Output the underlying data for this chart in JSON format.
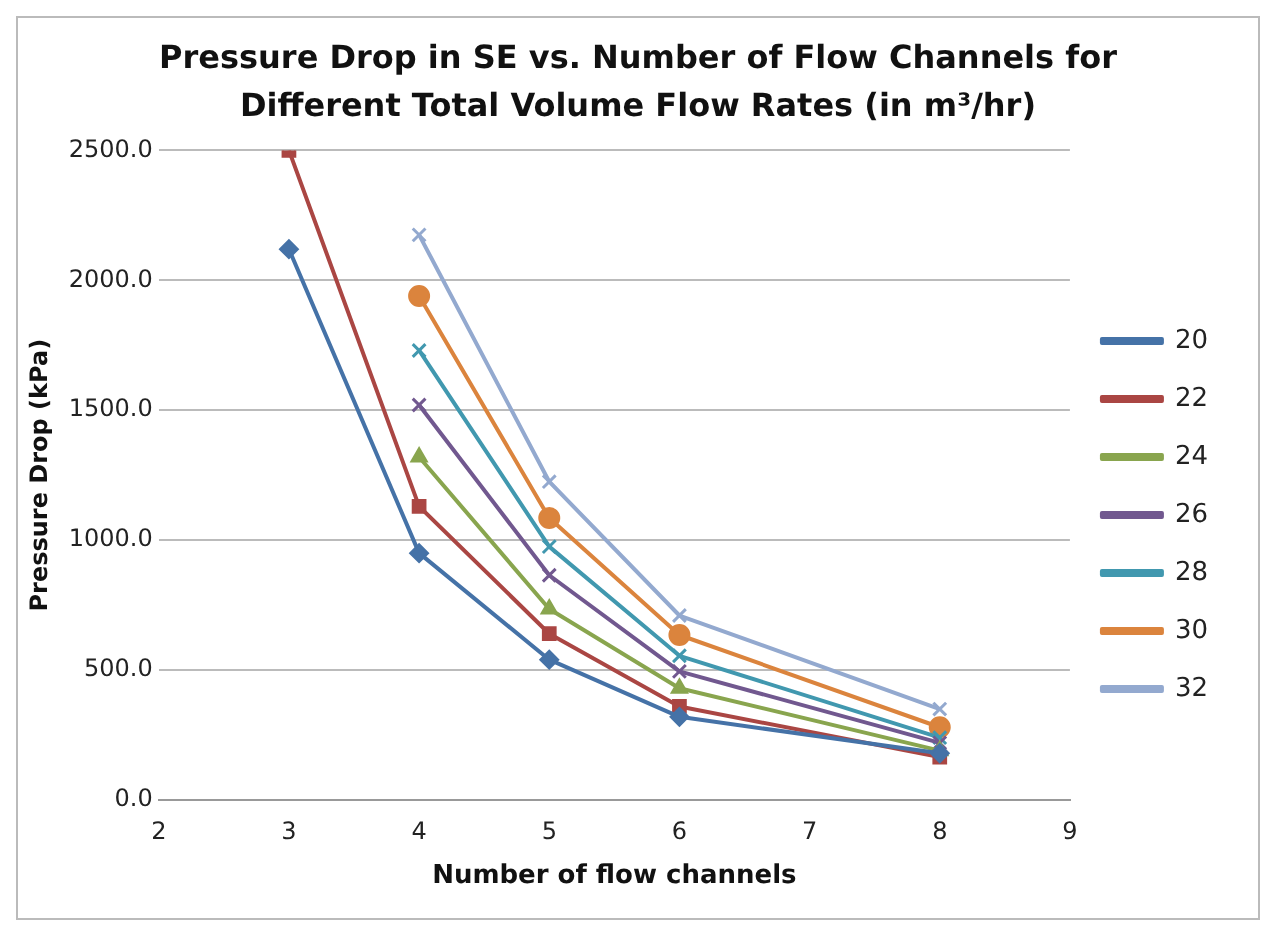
{
  "chart_data": {
    "type": "line",
    "title": "Pressure Drop in SE vs. Number of Flow Channels for Different Total Volume Flow Rates (in m³/hr)",
    "xlabel": "Number of flow channels",
    "ylabel": "Pressure Drop (kPa)",
    "x": [
      3,
      4,
      5,
      6,
      8
    ],
    "series": [
      {
        "name": "20",
        "color": "#4572a7",
        "marker": "diamond",
        "values": [
          2120,
          950,
          540,
          320,
          180
        ]
      },
      {
        "name": "22",
        "color": "#aa4643",
        "marker": "square",
        "values": [
          2500,
          1130,
          640,
          360,
          165
        ]
      },
      {
        "name": "24",
        "color": "#89a54e",
        "marker": "triangle",
        "values": [
          null,
          1320,
          735,
          430,
          190
        ]
      },
      {
        "name": "26",
        "color": "#71588f",
        "marker": "cross",
        "values": [
          null,
          1520,
          865,
          495,
          220
        ]
      },
      {
        "name": "28",
        "color": "#4198af",
        "marker": "cross",
        "values": [
          null,
          1730,
          975,
          555,
          240
        ]
      },
      {
        "name": "30",
        "color": "#db843d",
        "marker": "circle",
        "values": [
          null,
          1940,
          1085,
          635,
          280
        ]
      },
      {
        "name": "32",
        "color": "#93a9cf",
        "marker": "cross",
        "values": [
          null,
          2175,
          1225,
          710,
          350
        ]
      }
    ],
    "xlim": [
      2,
      9
    ],
    "xticks": [
      2,
      3,
      4,
      5,
      6,
      7,
      8,
      9
    ],
    "ylim": [
      0,
      2500
    ],
    "yticks": [
      {
        "value": 0,
        "label": "0.0"
      },
      {
        "value": 500,
        "label": "500.0"
      },
      {
        "value": 1000,
        "label": "1000.0"
      },
      {
        "value": 1500,
        "label": "1500.0"
      },
      {
        "value": 2000,
        "label": "2000.0"
      },
      {
        "value": 2500,
        "label": "2500.0"
      }
    ],
    "grid": "y",
    "legend": "right",
    "line_style": "solid"
  }
}
